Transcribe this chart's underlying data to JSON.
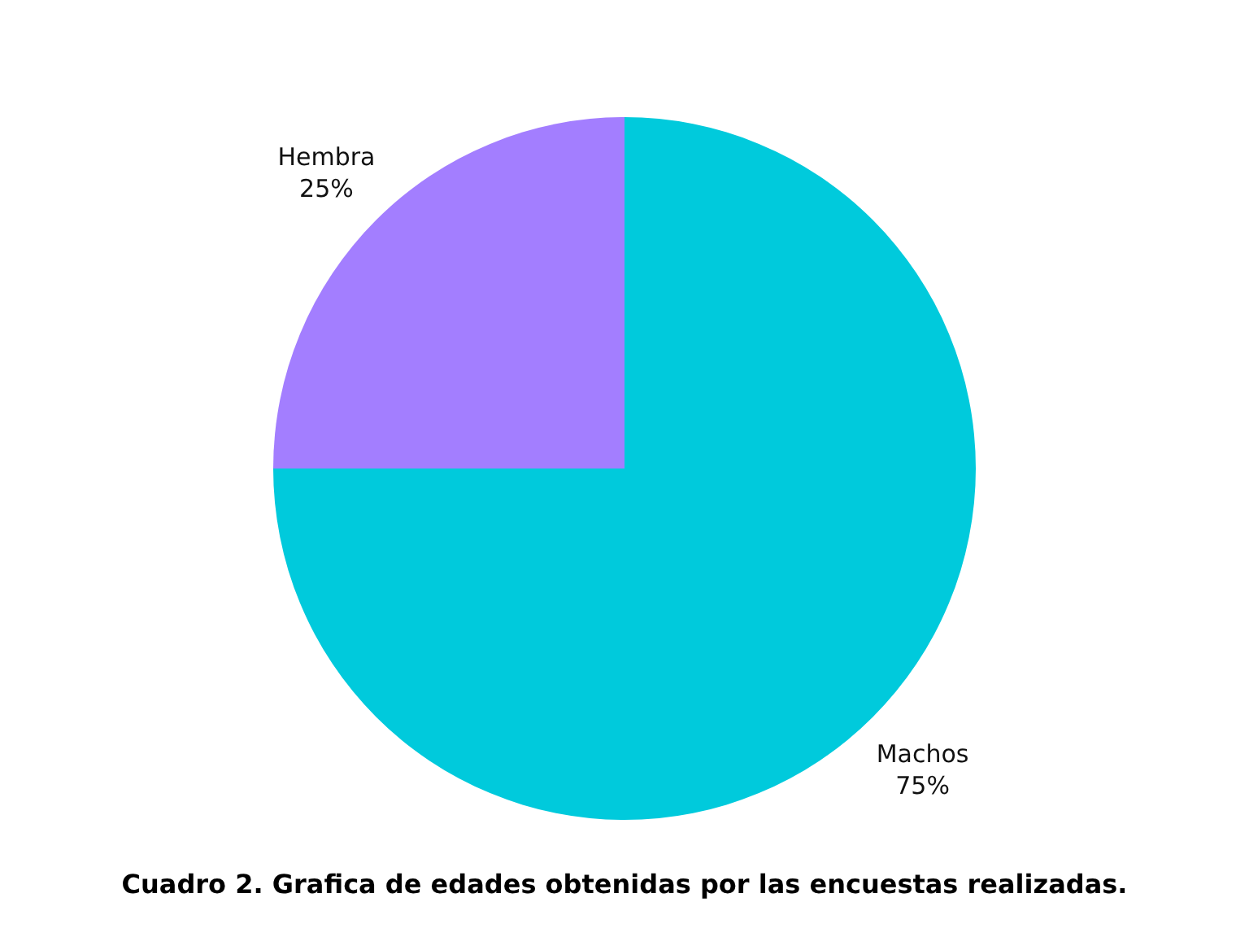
{
  "chart_data": {
    "type": "pie",
    "title": "Cuadro 2. Grafica de edades obtenidas por las encuestas realizadas.",
    "categories": [
      "Machos",
      "Hembra"
    ],
    "values": [
      75,
      25
    ],
    "colors": [
      "#00cadc",
      "#a37eff"
    ],
    "value_labels": [
      "75%",
      "25%"
    ],
    "legend": false
  }
}
